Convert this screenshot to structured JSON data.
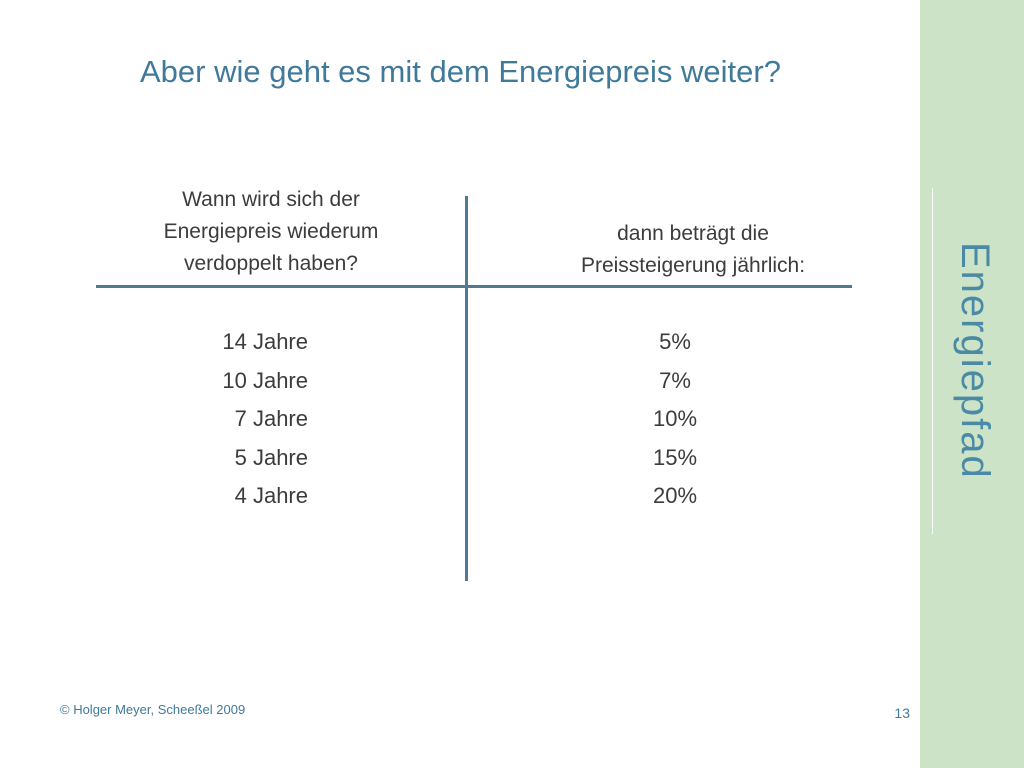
{
  "slide": {
    "title": "Aber wie geht es mit dem Energiepreis weiter?",
    "brand": "Energiepfad",
    "footer": "© Holger Meyer, Scheeßel 2009",
    "page_number": "13"
  },
  "table": {
    "left_header_lines": [
      "Wann wird sich der",
      "Energiepreis wiederum",
      "verdoppelt haben?"
    ],
    "right_header_lines": [
      "dann beträgt die",
      "Preissteigerung jährlich:"
    ],
    "years": [
      "14 Jahre",
      "10 Jahre",
      "7 Jahre",
      "5 Jahre",
      "4 Jahre"
    ],
    "rates": [
      "5%",
      "7%",
      "10%",
      "15%",
      "20%"
    ]
  },
  "colors": {
    "title": "#3f7a9a",
    "sidebar": "#cde3c8",
    "divider": "#4f7a91"
  }
}
